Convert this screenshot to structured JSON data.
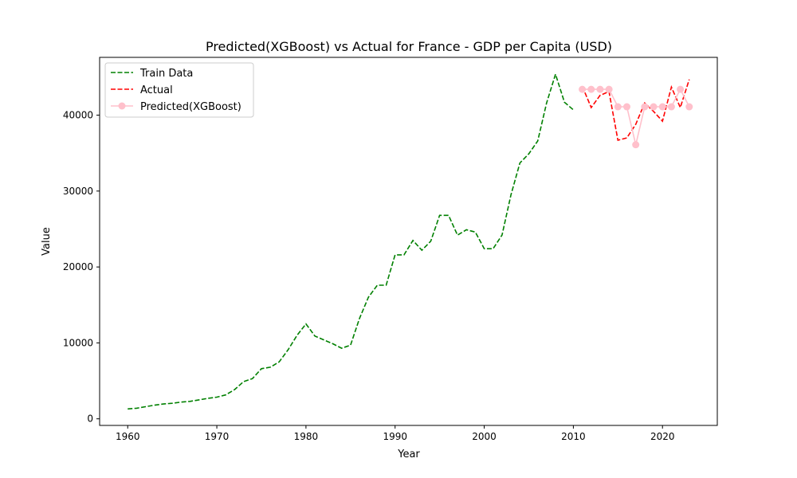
{
  "chart_data": {
    "type": "line",
    "title": "Predicted(XGBoost) vs Actual for France - GDP per Capita (USD)",
    "xlabel": "Year",
    "ylabel": "Value",
    "xlim": [
      1956.85,
      2026.15
    ],
    "ylim": [
      -870,
      47610
    ],
    "xticks": [
      1960,
      1970,
      1980,
      1990,
      2000,
      2010,
      2020
    ],
    "yticks": [
      0,
      10000,
      20000,
      30000,
      40000
    ],
    "grid": false,
    "legend_position": "top-left",
    "series": [
      {
        "name": "Train Data",
        "style": "dashed",
        "color": "#008000",
        "x": [
          1960,
          1961,
          1962,
          1963,
          1964,
          1965,
          1966,
          1967,
          1968,
          1969,
          1970,
          1971,
          1972,
          1973,
          1974,
          1975,
          1976,
          1977,
          1978,
          1979,
          1980,
          1981,
          1982,
          1983,
          1984,
          1985,
          1986,
          1987,
          1988,
          1989,
          1990,
          1991,
          1992,
          1993,
          1994,
          1995,
          1996,
          1997,
          1998,
          1999,
          2000,
          2001,
          2002,
          2003,
          2004,
          2005,
          2006,
          2007,
          2008,
          2009,
          2010
        ],
        "y": [
          1300,
          1400,
          1600,
          1800,
          1950,
          2050,
          2200,
          2300,
          2500,
          2700,
          2850,
          3150,
          3850,
          4900,
          5300,
          6600,
          6800,
          7500,
          9100,
          11000,
          12500,
          10900,
          10400,
          9900,
          9300,
          9700,
          13200,
          16000,
          17600,
          17600,
          21600,
          21600,
          23500,
          22200,
          23400,
          26800,
          26800,
          24200,
          24900,
          24600,
          22400,
          22400,
          24200,
          29500,
          33700,
          34900,
          36600,
          41600,
          45400,
          41700,
          40700
        ]
      },
      {
        "name": "Actual",
        "style": "dashed",
        "color": "#ff0000",
        "x": [
          2011,
          2012,
          2013,
          2014,
          2015,
          2016,
          2017,
          2018,
          2019,
          2020,
          2021,
          2022,
          2023
        ],
        "y": [
          43800,
          41000,
          42600,
          43100,
          36700,
          37000,
          38800,
          41600,
          40500,
          39200,
          43700,
          41000,
          44700
        ]
      },
      {
        "name": "Predicted(XGBoost)",
        "style": "solid-marker",
        "color": "#ffc0cb",
        "x": [
          2011,
          2012,
          2013,
          2014,
          2015,
          2016,
          2017,
          2018,
          2019,
          2020,
          2021,
          2022,
          2023
        ],
        "y": [
          43400,
          43400,
          43400,
          43400,
          41100,
          41100,
          36100,
          41100,
          41100,
          41100,
          41100,
          43400,
          41100
        ]
      }
    ]
  }
}
